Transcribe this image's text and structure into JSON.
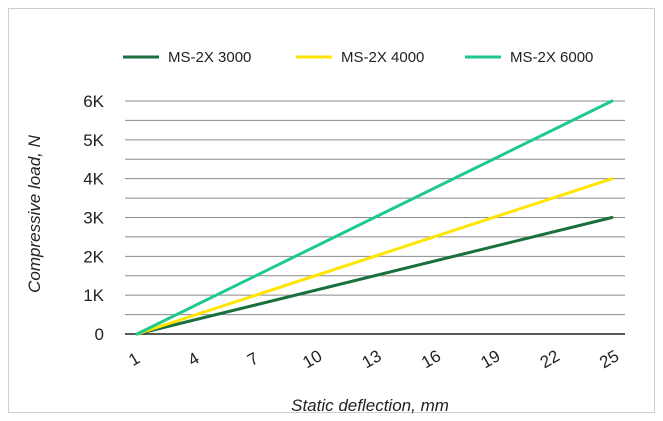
{
  "chart_data": {
    "type": "line",
    "xlabel": "Static deflection, mm",
    "ylabel": "Compressive load, N",
    "x_ticks": [
      "1",
      "4",
      "7",
      "10",
      "13",
      "16",
      "19",
      "22",
      "25"
    ],
    "xlim": [
      1,
      25
    ],
    "y_ticks": [
      "0",
      "1K",
      "2K",
      "3K",
      "4K",
      "5K",
      "6K"
    ],
    "ylim": [
      0,
      6000
    ],
    "grid": true,
    "legend_position": "top",
    "series": [
      {
        "name": "MS-2X 3000",
        "color": "#1a6f3e",
        "x": [
          1,
          25
        ],
        "y": [
          0,
          3000
        ]
      },
      {
        "name": "MS-2X 4000",
        "color": "#ffe500",
        "x": [
          1,
          25
        ],
        "y": [
          0,
          4000
        ]
      },
      {
        "name": "MS-2X 6000",
        "color": "#1fc98e",
        "x": [
          1,
          25
        ],
        "y": [
          0,
          6000
        ]
      }
    ]
  }
}
